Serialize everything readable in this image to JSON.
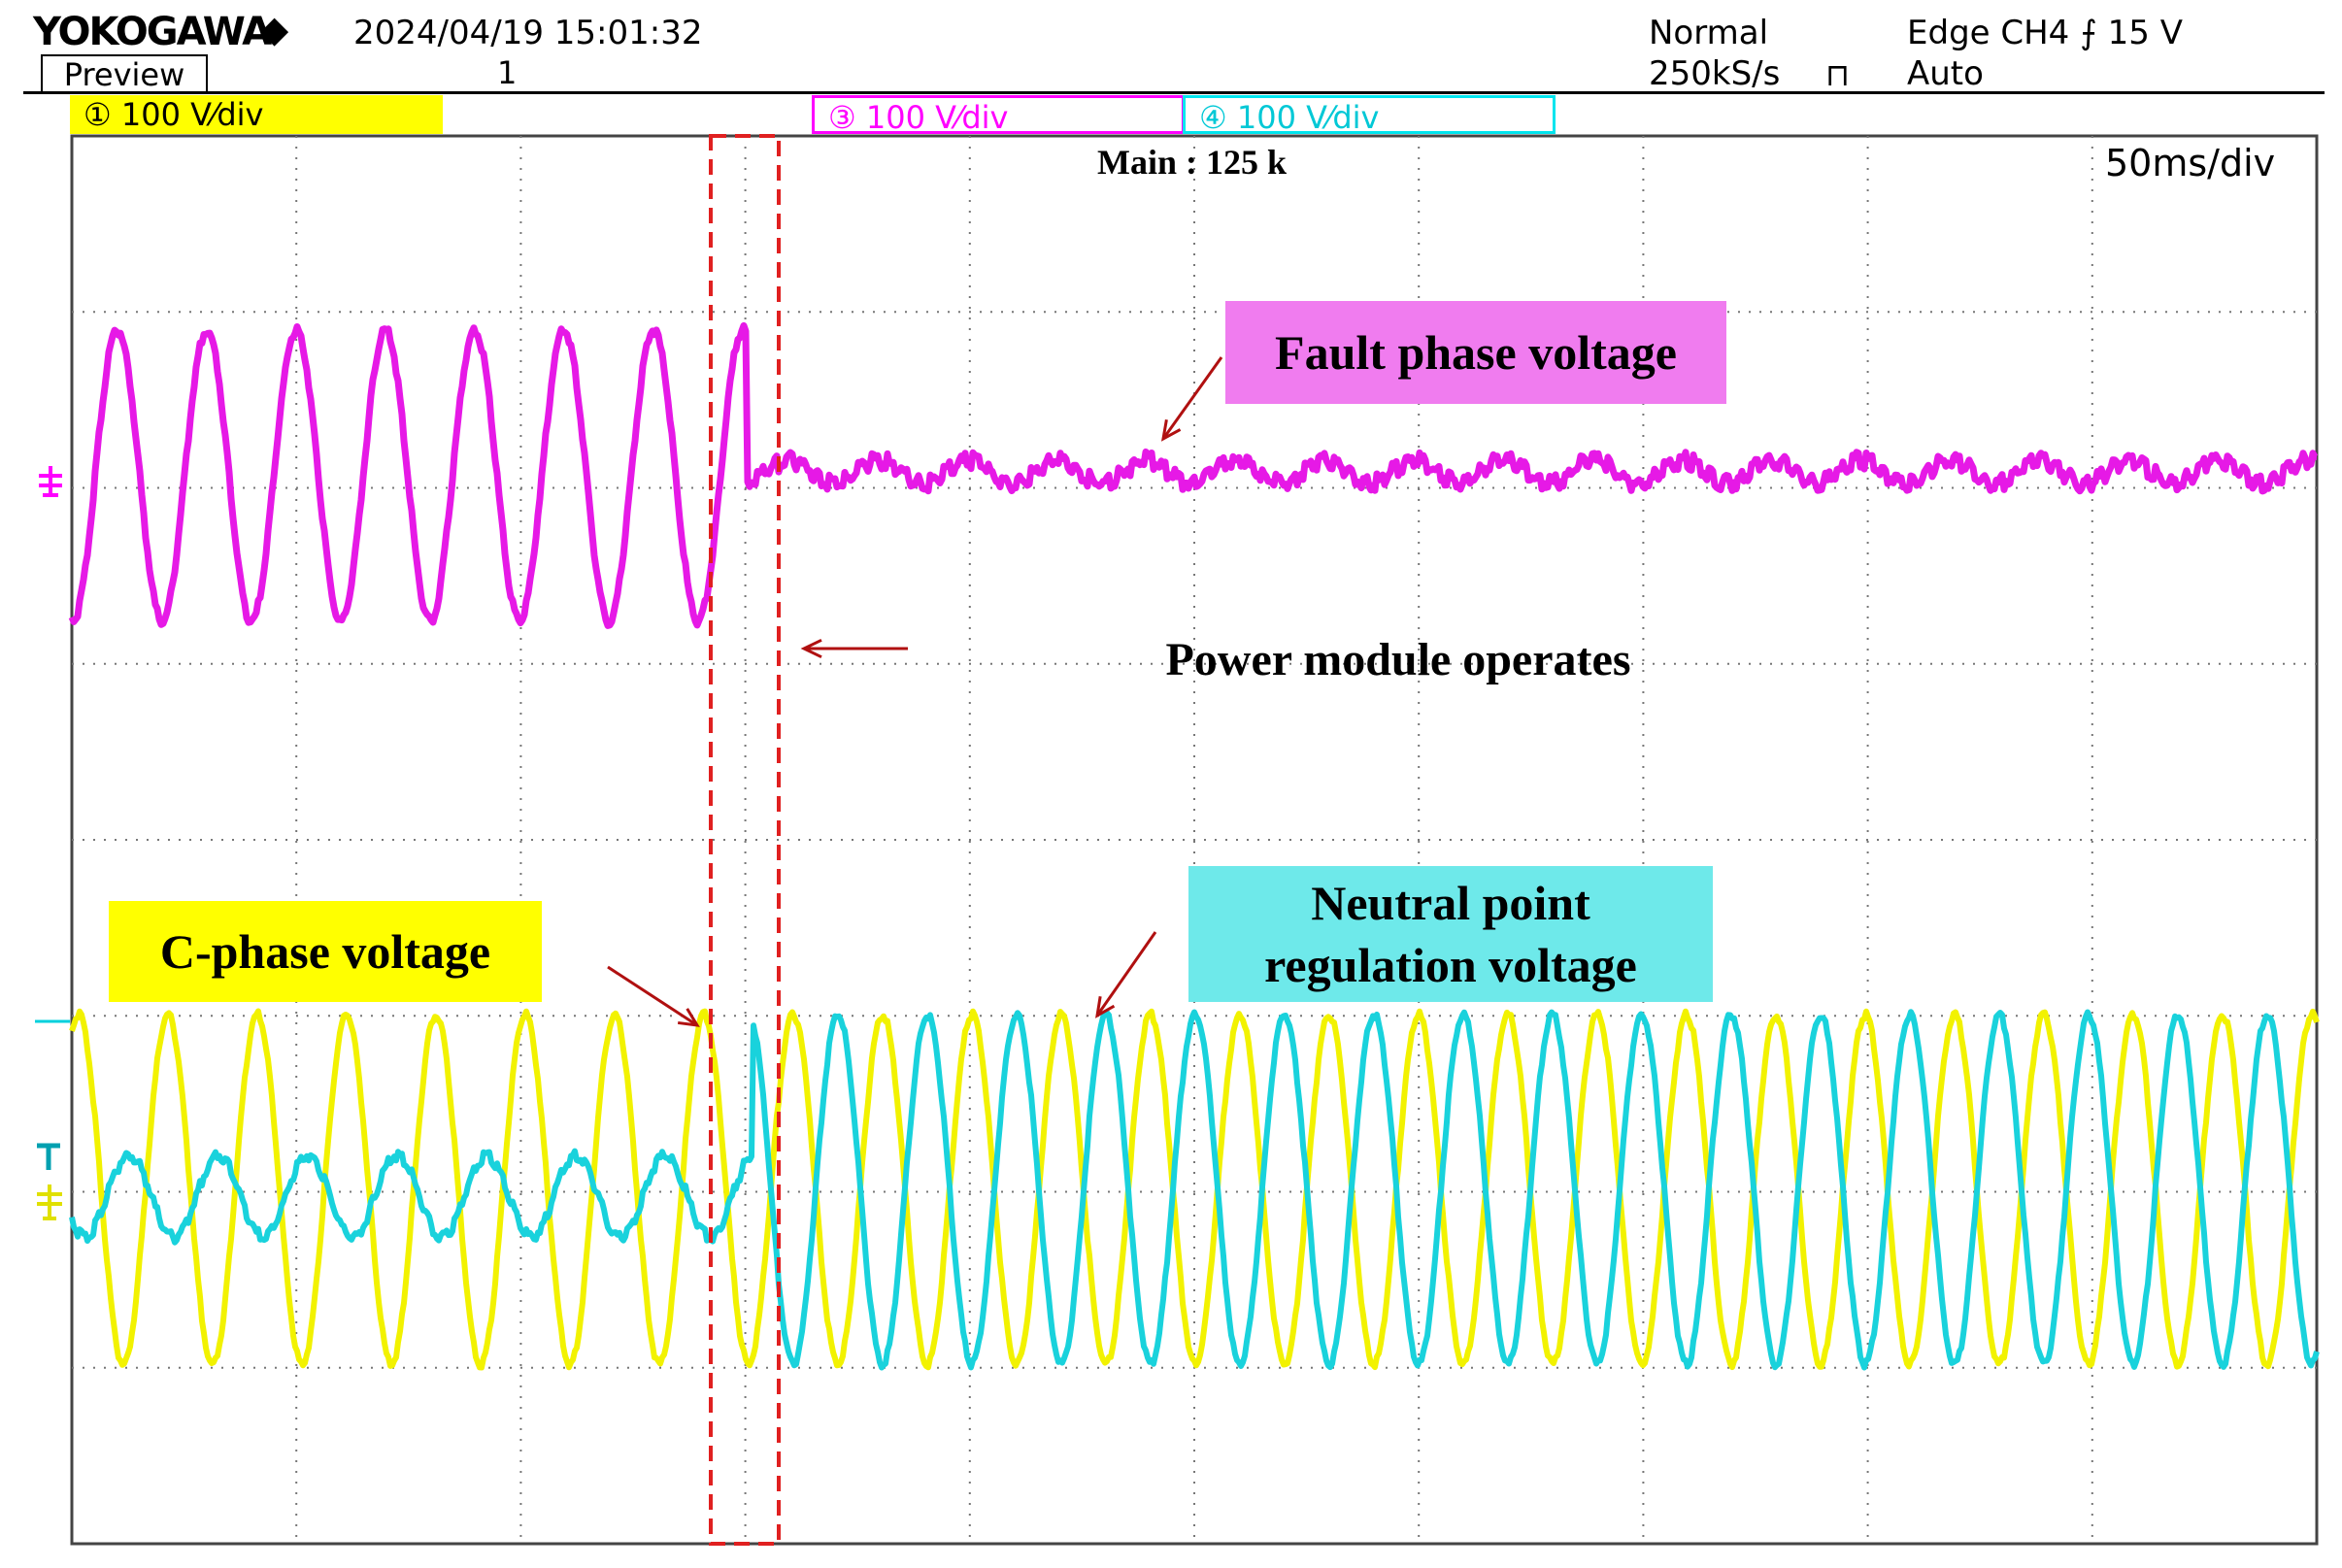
{
  "header": {
    "brand": "YOKOGAWA",
    "datetime": "2024/04/19  15:01:32",
    "preview_label": "Preview",
    "record_number": "1",
    "acquisition_mode": "Normal",
    "sample_rate": "250kS/s",
    "trigger": "Edge CH4 ⨍ 15 V",
    "trigger_mode": "Auto"
  },
  "channels": [
    {
      "id": "ch1",
      "marker": "①",
      "scale": "100 V⁄div",
      "color": "#ffff00"
    },
    {
      "id": "ch3",
      "marker": "③",
      "scale": "100 V⁄div",
      "color": "#ff00ff"
    },
    {
      "id": "ch4",
      "marker": "④",
      "scale": "100 V⁄div",
      "color": "#00e5ee"
    }
  ],
  "screen": {
    "main_record": "Main : 125 k",
    "timebase": "50ms/div"
  },
  "annotations": {
    "fault_phase": "Fault phase voltage",
    "power_module": "Power module operates",
    "neutral_point": [
      "Neutral point",
      "regulation voltage"
    ],
    "c_phase": "C-phase voltage"
  },
  "colors": {
    "fault_trace": "#e619e6",
    "c_phase_trace": "#f2f200",
    "neutral_trace": "#19d2dc",
    "marker_box": "#e02020",
    "arrow": "#b01010"
  }
}
